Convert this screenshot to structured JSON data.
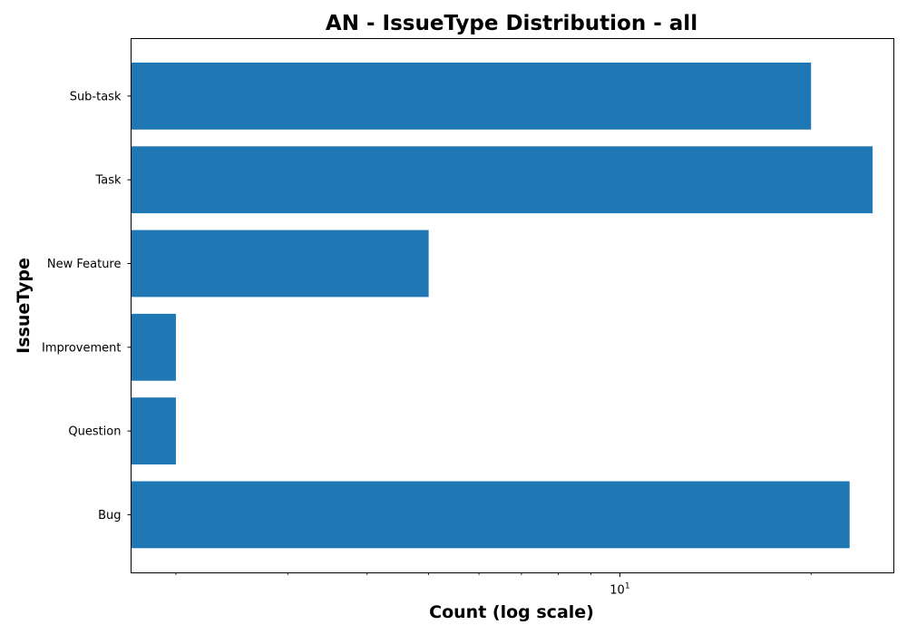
{
  "chart_data": {
    "type": "bar",
    "orientation": "horizontal",
    "title": "AN - IssueType Distribution - all",
    "xlabel": "Count (log scale)",
    "ylabel": "IssueType",
    "x_scale": "log",
    "xlim": [
      1.7,
      27
    ],
    "x_ticks": [
      {
        "value": 10,
        "base": "10",
        "exponent": "1"
      }
    ],
    "x_minor_ticks": [
      2,
      3,
      4,
      5,
      6,
      7,
      8,
      9,
      20
    ],
    "categories": [
      "Bug",
      "Question",
      "Improvement",
      "New Feature",
      "Task",
      "Sub-task"
    ],
    "values": [
      23,
      2,
      2,
      5,
      25,
      20
    ],
    "bar_color": "#1f77b4",
    "grid": false,
    "legend": "none"
  }
}
